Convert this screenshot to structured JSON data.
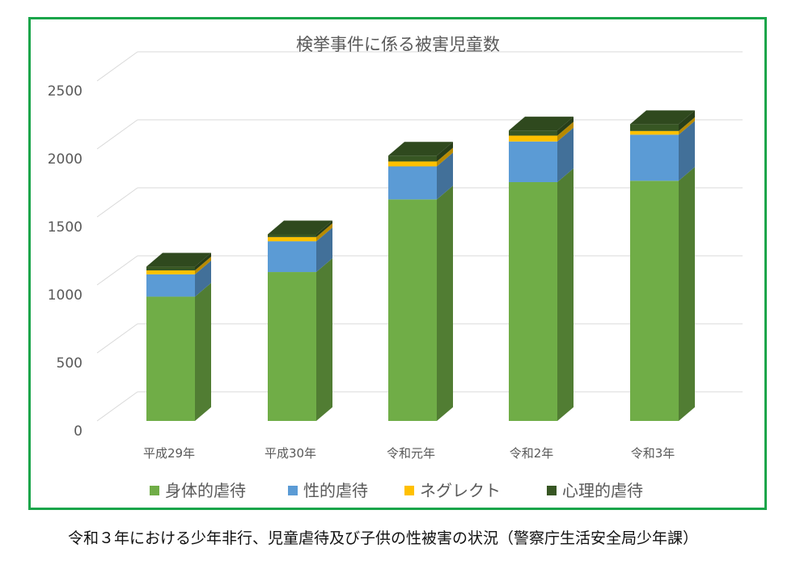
{
  "chart_data": {
    "type": "bar",
    "stacked": true,
    "title": "検挙事件に係る被害児童数",
    "categories": [
      "平成29年",
      "平成30年",
      "令和元年",
      "令和2年",
      "令和3年"
    ],
    "series": [
      {
        "name": "身体的虐待",
        "color": "#70ad47",
        "values": [
          914,
          1095,
          1629,
          1756,
          1766
        ]
      },
      {
        "name": "性的虐待",
        "color": "#5b9bd5",
        "values": [
          164,
          226,
          243,
          299,
          339
        ]
      },
      {
        "name": "ネグレクト",
        "color": "#ffc000",
        "values": [
          29,
          31,
          36,
          43,
          27
        ]
      },
      {
        "name": "心理的虐待",
        "color": "#375623",
        "values": [
          28,
          20,
          43,
          38,
          50
        ]
      }
    ],
    "yticks": [
      0,
      500,
      1000,
      1500,
      2000,
      2500
    ],
    "ylim": [
      0,
      2500
    ],
    "legend_position": "bottom",
    "xlabel": "",
    "ylabel": ""
  },
  "caption": "令和３年における少年非行、児童虐待及び子供の性被害の状況（警察庁生活安全局少年課）",
  "colors": {
    "frame": "#1aa54a",
    "grid": "#d9d9d9",
    "text": "#595959"
  }
}
